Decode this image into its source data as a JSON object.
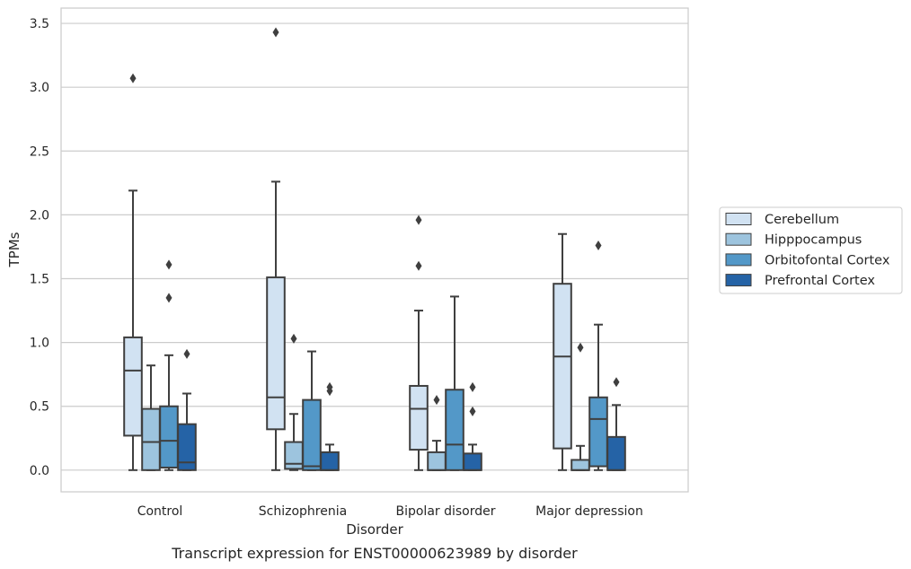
{
  "chart_data": {
    "type": "box",
    "title": "",
    "caption": "Transcript expression for ENST00000623989 by disorder",
    "xlabel": "Disorder",
    "ylabel": "TPMs",
    "ylim": [
      -0.17,
      3.62
    ],
    "yticks": [
      "0.0",
      "0.5",
      "1.0",
      "1.5",
      "2.0",
      "2.5",
      "3.0",
      "3.5"
    ],
    "grid": true,
    "legend_position": "right",
    "categories": [
      "Control",
      "Schizophrenia",
      "Bipolar disorder",
      "Major depression"
    ],
    "series": [
      {
        "name": "Cerebellum",
        "color": "#d1e2f2",
        "boxes": [
          {
            "q1": 0.27,
            "median": 0.78,
            "q3": 1.04,
            "whisker_low": 0.0,
            "whisker_high": 2.19,
            "outliers": [
              3.07
            ]
          },
          {
            "q1": 0.32,
            "median": 0.57,
            "q3": 1.51,
            "whisker_low": 0.0,
            "whisker_high": 2.26,
            "outliers": [
              3.43
            ]
          },
          {
            "q1": 0.16,
            "median": 0.48,
            "q3": 0.66,
            "whisker_low": 0.0,
            "whisker_high": 1.25,
            "outliers": [
              1.6,
              1.96
            ]
          },
          {
            "q1": 0.17,
            "median": 0.89,
            "q3": 1.46,
            "whisker_low": 0.0,
            "whisker_high": 1.85,
            "outliers": []
          }
        ]
      },
      {
        "name": "Hipppocampus",
        "color": "#9dc4de",
        "boxes": [
          {
            "q1": 0.0,
            "median": 0.22,
            "q3": 0.48,
            "whisker_low": 0.0,
            "whisker_high": 0.82,
            "outliers": []
          },
          {
            "q1": 0.01,
            "median": 0.05,
            "q3": 0.22,
            "whisker_low": 0.0,
            "whisker_high": 0.44,
            "outliers": [
              1.03
            ]
          },
          {
            "q1": 0.0,
            "median": 0.0,
            "q3": 0.14,
            "whisker_low": 0.0,
            "whisker_high": 0.23,
            "outliers": [
              0.55
            ]
          },
          {
            "q1": 0.0,
            "median": 0.0,
            "q3": 0.08,
            "whisker_low": 0.0,
            "whisker_high": 0.19,
            "outliers": [
              0.96
            ]
          }
        ]
      },
      {
        "name": "Orbitofontal Cortex",
        "color": "#5398c8",
        "boxes": [
          {
            "q1": 0.02,
            "median": 0.23,
            "q3": 0.5,
            "whisker_low": 0.0,
            "whisker_high": 0.9,
            "outliers": [
              1.35,
              1.61
            ]
          },
          {
            "q1": 0.0,
            "median": 0.03,
            "q3": 0.55,
            "whisker_low": 0.0,
            "whisker_high": 0.93,
            "outliers": []
          },
          {
            "q1": 0.0,
            "median": 0.2,
            "q3": 0.63,
            "whisker_low": 0.0,
            "whisker_high": 1.36,
            "outliers": []
          },
          {
            "q1": 0.03,
            "median": 0.4,
            "q3": 0.57,
            "whisker_low": 0.0,
            "whisker_high": 1.14,
            "outliers": [
              1.76
            ]
          }
        ]
      },
      {
        "name": "Prefrontal Cortex",
        "color": "#2563a6",
        "boxes": [
          {
            "q1": 0.0,
            "median": 0.06,
            "q3": 0.36,
            "whisker_low": 0.0,
            "whisker_high": 0.6,
            "outliers": [
              0.91
            ]
          },
          {
            "q1": 0.0,
            "median": 0.0,
            "q3": 0.14,
            "whisker_low": 0.0,
            "whisker_high": 0.2,
            "outliers": [
              0.62,
              0.65
            ]
          },
          {
            "q1": 0.0,
            "median": 0.0,
            "q3": 0.13,
            "whisker_low": 0.0,
            "whisker_high": 0.2,
            "outliers": [
              0.46,
              0.65
            ]
          },
          {
            "q1": 0.0,
            "median": 0.0,
            "q3": 0.26,
            "whisker_low": 0.0,
            "whisker_high": 0.51,
            "outliers": [
              0.69
            ]
          }
        ]
      }
    ]
  }
}
